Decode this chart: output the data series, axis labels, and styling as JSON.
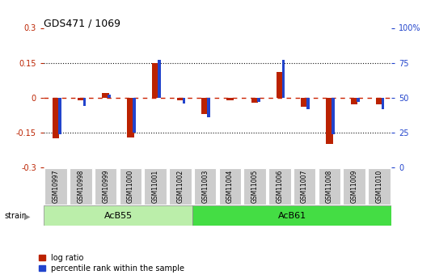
{
  "title": "GDS471 / 1069",
  "samples": [
    "GSM10997",
    "GSM10998",
    "GSM10999",
    "GSM11000",
    "GSM11001",
    "GSM11002",
    "GSM11003",
    "GSM11004",
    "GSM11005",
    "GSM11006",
    "GSM11007",
    "GSM11008",
    "GSM11009",
    "GSM11010"
  ],
  "log_ratio": [
    -0.175,
    -0.01,
    0.02,
    -0.17,
    0.15,
    -0.01,
    -0.07,
    -0.01,
    -0.02,
    0.11,
    -0.04,
    -0.2,
    -0.03,
    -0.03
  ],
  "percentile_rank": [
    24,
    44,
    52,
    25,
    77,
    46,
    36,
    50,
    47,
    77,
    42,
    24,
    47,
    42
  ],
  "group1_label": "AcB55",
  "group1_count": 6,
  "group2_label": "AcB61",
  "group2_count": 8,
  "strain_label": "strain",
  "ylim_left": [
    -0.3,
    0.3
  ],
  "ylim_right": [
    0,
    100
  ],
  "yticks_left": [
    -0.3,
    -0.15,
    0.0,
    0.15,
    0.3
  ],
  "yticks_right": [
    0,
    25,
    50,
    75,
    100
  ],
  "ytick_labels_left": [
    "-0.3",
    "-0.15",
    "0",
    "0.15",
    "0.3"
  ],
  "ytick_labels_right": [
    "0",
    "25",
    "50",
    "75",
    "100%"
  ],
  "hlines": [
    0.15,
    0.0,
    -0.15
  ],
  "bar_color_log": "#bb2200",
  "bar_color_pct": "#2244cc",
  "group1_color": "#bbeeaa",
  "group2_color": "#44dd44",
  "tick_bg_color": "#cccccc",
  "legend_log": "log ratio",
  "legend_pct": "percentile rank within the sample",
  "red_line_color": "#cc2200",
  "black_line_color": "#111111"
}
